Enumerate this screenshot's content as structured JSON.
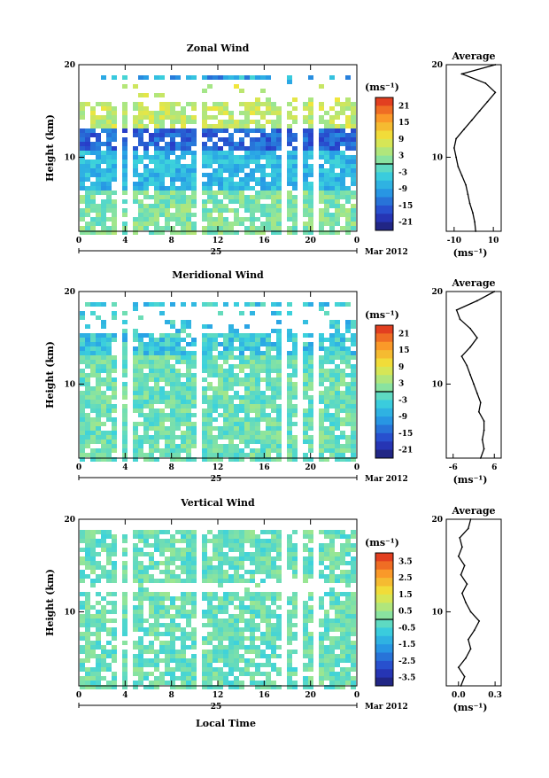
{
  "footer_label": "Local Time",
  "chart_data": [
    {
      "type": "heatmap",
      "title": "Zonal Wind",
      "ylabel": "Height (km)",
      "ylim": [
        2,
        20
      ],
      "yticks": [
        "20",
        "10"
      ],
      "xticks": [
        "0",
        "4",
        "8",
        "12",
        "16",
        "20",
        "0"
      ],
      "date_day": "25",
      "date_label": "Mar 2012",
      "colorbar": {
        "unit": "(ms⁻¹)",
        "ticks": [
          "21",
          "15",
          "9",
          "3",
          "-3",
          "-9",
          "-15",
          "-21"
        ],
        "range": [
          -24,
          24
        ]
      },
      "average": {
        "title": "Average",
        "xticks": [
          "-10",
          "10"
        ],
        "xlabel": "(ms⁻¹)",
        "yticks": [
          "20",
          "10"
        ],
        "xlim": [
          -14,
          14
        ],
        "height": [
          2,
          3,
          4,
          5,
          6,
          7,
          8,
          9,
          10,
          11,
          12,
          13,
          14,
          15,
          16,
          17,
          18,
          19,
          20
        ],
        "values": [
          1,
          0.5,
          -0.5,
          -2,
          -3,
          -4,
          -6,
          -8,
          -9,
          -10,
          -9,
          -5,
          -1,
          3,
          7,
          11,
          6,
          -6,
          11
        ]
      }
    },
    {
      "type": "heatmap",
      "title": "Meridional Wind",
      "ylabel": "Height (km)",
      "ylim": [
        2,
        20
      ],
      "yticks": [
        "20",
        "10"
      ],
      "xticks": [
        "0",
        "4",
        "8",
        "12",
        "16",
        "20",
        "0"
      ],
      "date_day": "25",
      "date_label": "Mar 2012",
      "colorbar": {
        "unit": "(ms⁻¹)",
        "ticks": [
          "21",
          "15",
          "9",
          "3",
          "-3",
          "-9",
          "-15",
          "-21"
        ],
        "range": [
          -24,
          24
        ]
      },
      "average": {
        "title": "Average",
        "xticks": [
          "-6",
          "6"
        ],
        "xlabel": "(ms⁻¹)",
        "yticks": [
          "20",
          "10"
        ],
        "xlim": [
          -8,
          8
        ],
        "height": [
          2,
          3,
          4,
          5,
          6,
          7,
          8,
          9,
          10,
          11,
          12,
          13,
          14,
          15,
          16,
          17,
          18,
          19,
          20
        ],
        "values": [
          2,
          3,
          2.5,
          3,
          3,
          1.5,
          2,
          1,
          0,
          -1,
          -2,
          -3.5,
          -1,
          1,
          -1,
          -4,
          -5,
          1,
          6
        ]
      }
    },
    {
      "type": "heatmap",
      "title": "Vertical Wind",
      "ylabel": "Height (km)",
      "ylim": [
        2,
        20
      ],
      "yticks": [
        "20",
        "10"
      ],
      "xticks": [
        "0",
        "4",
        "8",
        "12",
        "16",
        "20",
        "0"
      ],
      "date_day": "25",
      "date_label": "Mar 2012",
      "colorbar": {
        "unit": "(ms⁻¹)",
        "ticks": [
          "3.5",
          "2.5",
          "1.5",
          "0.5",
          "-0.5",
          "-1.5",
          "-2.5",
          "-3.5"
        ],
        "range": [
          -4,
          4
        ]
      },
      "average": {
        "title": "Average",
        "xticks": [
          "0.0",
          "0.3"
        ],
        "xlabel": "(ms⁻¹)",
        "yticks": [
          "20",
          "10"
        ],
        "xlim": [
          -0.1,
          0.35
        ],
        "height": [
          2,
          3,
          4,
          5,
          6,
          7,
          8,
          9,
          10,
          11,
          12,
          13,
          14,
          15,
          16,
          17,
          18,
          19,
          20
        ],
        "values": [
          0.02,
          0.05,
          0.0,
          0.06,
          0.1,
          0.08,
          0.13,
          0.17,
          0.1,
          0.06,
          0.03,
          0.07,
          0.02,
          0.05,
          0.0,
          0.03,
          0.01,
          0.08,
          0.1
        ]
      }
    }
  ]
}
